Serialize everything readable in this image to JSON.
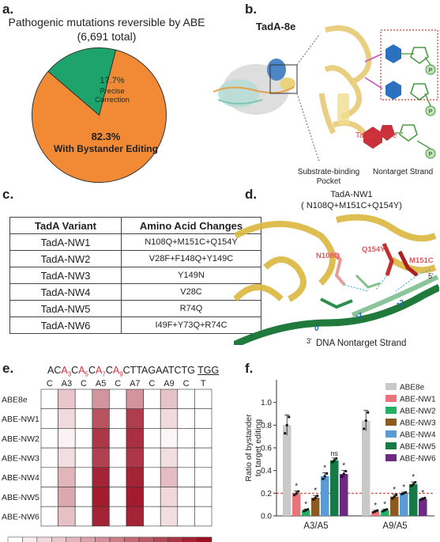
{
  "panels": {
    "a": "a.",
    "b": "b.",
    "c": "c.",
    "d": "d.",
    "e": "e.",
    "f": "f."
  },
  "panel_a": {
    "title": "Pathogenic mutations reversible by ABE",
    "subtitle": "(6,691 total)",
    "slices": [
      {
        "pct": "17.7%",
        "label_line1": "Precise",
        "label_line2": "Correction",
        "value": 17.7,
        "color": "#1ea36c"
      },
      {
        "pct": "82.3%",
        "label_line1": "With Bystander Editing",
        "label_line2": "",
        "value": 82.3,
        "color": "#f28a35"
      }
    ]
  },
  "panel_b": {
    "protein_label": "TadA-8e",
    "target_base": "Target base",
    "pocket_line1": "Substrate-binding",
    "pocket_line2": "Pocket",
    "nontarget": "Nontarget Strand",
    "phosphate": "P"
  },
  "panel_c": {
    "headers": [
      "TadA Variant",
      "Amino Acid Changes"
    ],
    "rows": [
      {
        "variant": "TadA-NW1",
        "changes": "N108Q+M151C+Q154Y"
      },
      {
        "variant": "TadA-NW2",
        "changes": "V28F+F148Q+Y149C"
      },
      {
        "variant": "TadA-NW3",
        "changes": "Y149N"
      },
      {
        "variant": "TadA-NW4",
        "changes": "V28C"
      },
      {
        "variant": "TadA-NW5",
        "changes": "R74Q"
      },
      {
        "variant": "TadA-NW6",
        "changes": "I49F+Y73Q+R74C"
      }
    ]
  },
  "panel_d": {
    "title": "TadA-NW1",
    "subtitle": "( N108Q+M151C+Q154Y)",
    "residues": [
      "N108Q",
      "Q154Y",
      "M151C"
    ],
    "positions": [
      "0",
      "-1",
      "-2",
      "5'",
      "3'"
    ],
    "strand_label": "DNA Nontarget Strand"
  },
  "panel_e": {
    "sequence": [
      {
        "t": "AC",
        "c": "#222",
        "sub": ""
      },
      {
        "t": "A",
        "c": "#d2343e",
        "sub": "3"
      },
      {
        "t": "C",
        "c": "#222",
        "sub": ""
      },
      {
        "t": "A",
        "c": "#d2343e",
        "sub": "5"
      },
      {
        "t": "C",
        "c": "#222",
        "sub": ""
      },
      {
        "t": "A",
        "c": "#d2343e",
        "sub": "7"
      },
      {
        "t": "C",
        "c": "#222",
        "sub": ""
      },
      {
        "t": "A",
        "c": "#d2343e",
        "sub": "9"
      },
      {
        "t": "CTTAGAATCTG ",
        "c": "#222",
        "sub": ""
      }
    ],
    "pam": "TGG",
    "columns": [
      "C",
      "A3",
      "C",
      "A5",
      "C",
      "A7",
      "C",
      "A9",
      "C",
      "T"
    ],
    "rows": [
      "ABE8e",
      "ABE-NW1",
      "ABE-NW2",
      "ABE-NW3",
      "ABE-NW4",
      "ABE-NW5",
      "ABE-NW6"
    ],
    "values": [
      [
        0,
        17,
        0,
        32,
        0,
        32,
        0,
        18,
        0,
        0
      ],
      [
        0,
        11,
        0,
        52,
        0,
        58,
        0,
        11,
        0,
        0
      ],
      [
        0,
        4,
        0,
        60,
        0,
        62,
        0,
        3,
        0,
        0
      ],
      [
        0,
        10,
        0,
        57,
        0,
        60,
        0,
        10,
        0,
        0
      ],
      [
        0,
        22,
        0,
        66,
        0,
        66,
        0,
        20,
        0,
        0
      ],
      [
        0,
        26,
        0,
        68,
        0,
        68,
        0,
        12,
        0,
        0
      ],
      [
        0,
        19,
        0,
        66,
        0,
        66,
        0,
        10,
        0,
        0
      ]
    ],
    "colorbar_ticks": [
      "0",
      "20",
      "40",
      "60"
    ],
    "colorbar_max": 72,
    "color_low": "#ffffff",
    "color_high": "#9c0f22"
  },
  "chart_data": {
    "type": "bar",
    "categories": [
      "A3/A5",
      "A9/A5"
    ],
    "ylabel": "Ratio of bystander to target editing",
    "ylim": [
      0,
      1.2
    ],
    "yticks": [
      "0.0",
      "0.2",
      "0.4",
      "0.6",
      "0.8",
      "1.0"
    ],
    "threshold": 0.2,
    "legend_position": "top-right",
    "series": [
      {
        "name": "ABE8e",
        "color": "#c9c9c9",
        "values": [
          0.8,
          0.84
        ],
        "err": [
          0.09,
          0.09
        ],
        "sig": [
          "",
          ""
        ]
      },
      {
        "name": "ABE-NW1",
        "color": "#e8737a",
        "values": [
          0.2,
          0.04
        ],
        "err": [
          0.02,
          0.01
        ],
        "sig": [
          "*",
          "*"
        ]
      },
      {
        "name": "ABE-NW2",
        "color": "#22b065",
        "values": [
          0.05,
          0.05
        ],
        "err": [
          0.01,
          0.01
        ],
        "sig": [
          "*",
          "*"
        ]
      },
      {
        "name": "ABE-NW3",
        "color": "#8c5a1e",
        "values": [
          0.16,
          0.17
        ],
        "err": [
          0.02,
          0.02
        ],
        "sig": [
          "*",
          "*"
        ]
      },
      {
        "name": "ABE-NW4",
        "color": "#5b9bd5",
        "values": [
          0.35,
          0.2
        ],
        "err": [
          0.03,
          0.01
        ],
        "sig": [
          "*",
          "*"
        ]
      },
      {
        "name": "ABE-NW5",
        "color": "#157a45",
        "values": [
          0.49,
          0.28
        ],
        "err": [
          0.02,
          0.02
        ],
        "sig": [
          "ns",
          "*"
        ]
      },
      {
        "name": "ABE-NW6",
        "color": "#6d2a82",
        "values": [
          0.37,
          0.15
        ],
        "err": [
          0.03,
          0.01
        ],
        "sig": [
          "*",
          "*"
        ]
      }
    ]
  }
}
